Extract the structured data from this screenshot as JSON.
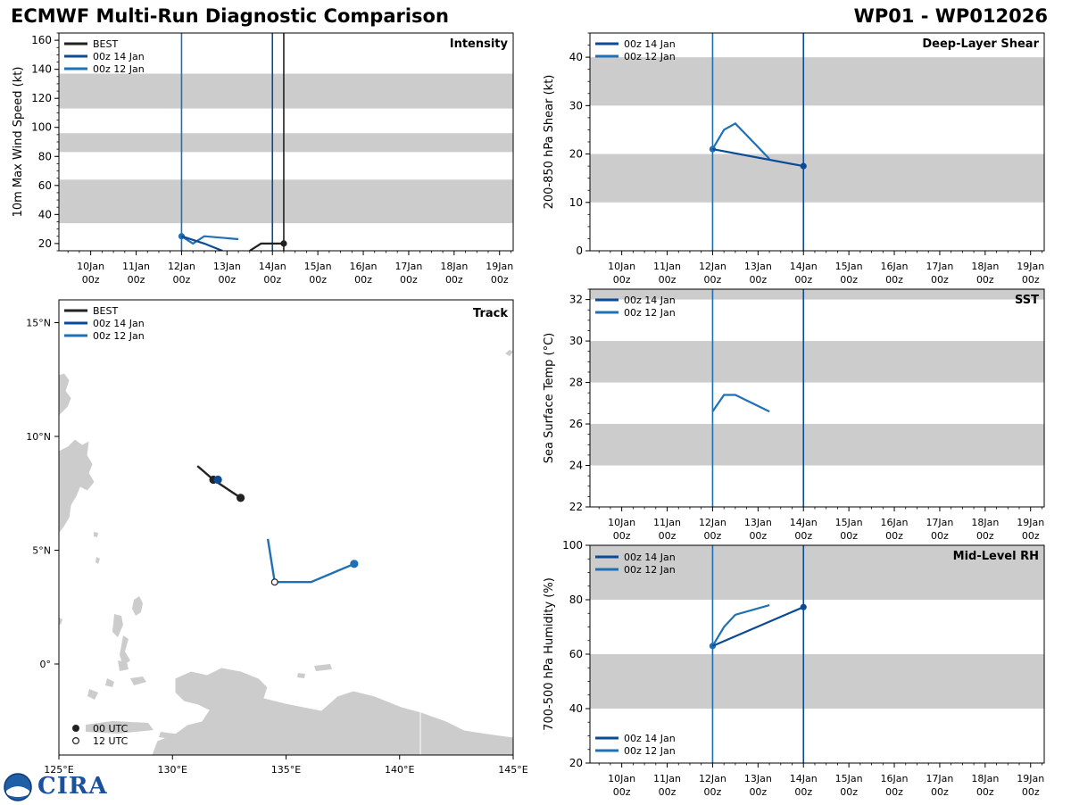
{
  "header": {
    "title": "ECMWF Multi-Run Diagnostic Comparison",
    "storm_id": "WP01 - WP012026",
    "logo_text": "CIRA"
  },
  "colors": {
    "best": "#222222",
    "run_00z_14jan": "#0b4a94",
    "run_00z_12jan": "#1f70b4",
    "band": "#cccccc",
    "land": "#cccccc"
  },
  "time_axis": {
    "tick_labels": [
      "10Jan",
      "11Jan",
      "12Jan",
      "13Jan",
      "14Jan",
      "15Jan",
      "16Jan",
      "17Jan",
      "18Jan",
      "19Jan"
    ],
    "tick_sub": "00z"
  },
  "chart_data": [
    {
      "id": "intensity",
      "type": "line",
      "title": "Intensity",
      "ylabel": "10m Max Wind Speed (kt)",
      "xlabel": "",
      "x_units": "days since 10 Jan 00z",
      "xlim": [
        -0.7,
        9.3
      ],
      "ylim": [
        15,
        165
      ],
      "yticks": [
        20,
        40,
        60,
        80,
        100,
        120,
        140,
        160
      ],
      "bands": [
        [
          34,
          64
        ],
        [
          83,
          96
        ],
        [
          113,
          137
        ]
      ],
      "legend": [
        "BEST",
        "00z 14 Jan",
        "00z 12 Jan"
      ],
      "vlines": [
        {
          "x": 2.0,
          "series": "run_00z_12jan"
        },
        {
          "x": 4.0,
          "series": "run_00z_14jan"
        },
        {
          "x": 4.25,
          "series": "best"
        }
      ],
      "series": [
        {
          "name": "BEST",
          "key": "best",
          "x": [
            3.5,
            3.75,
            4.0,
            4.25
          ],
          "y": [
            15,
            20,
            20,
            20
          ],
          "marker_x": 4.25,
          "marker_y": 20
        },
        {
          "name": "00z 12 Jan",
          "key": "run_00z_12jan",
          "x": [
            2.0,
            2.25,
            2.5,
            3.25
          ],
          "y": [
            25,
            20,
            25,
            23
          ],
          "marker_x": 2.0,
          "marker_y": 25
        },
        {
          "name": "00z 14 Jan",
          "key": "run_00z_14jan",
          "x": [
            2.0,
            2.5,
            2.9
          ],
          "y": [
            25,
            20,
            15
          ]
        }
      ]
    },
    {
      "id": "shear",
      "type": "line",
      "title": "Deep-Layer Shear",
      "ylabel": "200-850 hPa Shear (kt)",
      "xlabel": "",
      "xlim": [
        -0.7,
        9.3
      ],
      "ylim": [
        0,
        45
      ],
      "yticks": [
        0,
        10,
        20,
        30,
        40
      ],
      "bands": [
        [
          10,
          20
        ],
        [
          30,
          40
        ]
      ],
      "legend": [
        "00z 14 Jan",
        "00z 12 Jan"
      ],
      "vlines": [
        {
          "x": 2.0,
          "series": "run_00z_12jan"
        },
        {
          "x": 4.0,
          "series": "run_00z_14jan"
        }
      ],
      "series": [
        {
          "name": "00z 12 Jan",
          "key": "run_00z_12jan",
          "x": [
            2.0,
            2.25,
            2.5,
            3.25
          ],
          "y": [
            21,
            25,
            26.3,
            19
          ],
          "marker_x": 2.0,
          "marker_y": 21
        },
        {
          "name": "00z 14 Jan",
          "key": "run_00z_14jan",
          "x": [
            2.0,
            4.0
          ],
          "y": [
            21,
            17.5
          ],
          "marker_x": 4.0,
          "marker_y": 17.5
        }
      ]
    },
    {
      "id": "sst",
      "type": "line",
      "title": "SST",
      "ylabel": "Sea Surface Temp (°C)",
      "xlabel": "",
      "xlim": [
        -0.7,
        9.3
      ],
      "ylim": [
        22,
        32.5
      ],
      "yticks": [
        22,
        24,
        26,
        28,
        30,
        32
      ],
      "bands": [
        [
          24,
          26
        ],
        [
          28,
          30
        ],
        [
          32,
          34
        ]
      ],
      "legend": [
        "00z 14 Jan",
        "00z 12 Jan"
      ],
      "vlines": [
        {
          "x": 2.0,
          "series": "run_00z_12jan"
        },
        {
          "x": 4.0,
          "series": "run_00z_14jan"
        }
      ],
      "series": [
        {
          "name": "00z 12 Jan",
          "key": "run_00z_12jan",
          "x": [
            2.0,
            2.25,
            2.5,
            3.25
          ],
          "y": [
            26.6,
            27.4,
            27.4,
            26.6
          ]
        }
      ]
    },
    {
      "id": "rh",
      "type": "line",
      "title": "Mid-Level RH",
      "ylabel": "700-500 hPa Humidity (%)",
      "xlabel": "",
      "xlim": [
        -0.7,
        9.3
      ],
      "ylim": [
        20,
        100
      ],
      "yticks": [
        20,
        40,
        60,
        80,
        100
      ],
      "bands": [
        [
          40,
          60
        ],
        [
          80,
          100
        ]
      ],
      "legend": [
        "00z 14 Jan",
        "00z 12 Jan"
      ],
      "vlines": [
        {
          "x": 2.0,
          "series": "run_00z_12jan"
        },
        {
          "x": 4.0,
          "series": "run_00z_14jan"
        }
      ],
      "series": [
        {
          "name": "00z 12 Jan",
          "key": "run_00z_12jan",
          "x": [
            2.0,
            2.25,
            2.5,
            3.25
          ],
          "y": [
            63,
            70,
            74.5,
            78
          ],
          "marker_x": 2.0,
          "marker_y": 63
        },
        {
          "name": "00z 14 Jan",
          "key": "run_00z_14jan",
          "x": [
            2.0,
            4.0
          ],
          "y": [
            63,
            77.3
          ],
          "marker_x": 4.0,
          "marker_y": 77.3
        }
      ]
    },
    {
      "id": "track",
      "type": "scatter",
      "title": "Track",
      "xlabel": "",
      "ylabel": "",
      "xlim": [
        125,
        145
      ],
      "ylim": [
        -4,
        16
      ],
      "xticks": [
        125,
        130,
        135,
        140,
        145
      ],
      "xtick_labels": [
        "125°E",
        "130°E",
        "135°E",
        "140°E",
        "145°E"
      ],
      "yticks": [
        0,
        5,
        10,
        15
      ],
      "ytick_labels": [
        "0°",
        "5°N",
        "10°N",
        "15°N"
      ],
      "legend": [
        "BEST",
        "00z 14 Jan",
        "00z 12 Jan"
      ],
      "marker_legend": [
        "00 UTC",
        "12 UTC"
      ],
      "series": [
        {
          "name": "BEST",
          "key": "best",
          "lon": [
            131.1,
            131.8,
            133.0
          ],
          "lat": [
            8.7,
            8.1,
            7.3
          ],
          "markers": [
            {
              "lon": 131.8,
              "lat": 8.1,
              "filled": true
            },
            {
              "lon": 133.0,
              "lat": 7.3,
              "filled": true
            }
          ]
        },
        {
          "name": "00z 14 Jan",
          "key": "run_00z_14jan",
          "lon": [
            132.0
          ],
          "lat": [
            8.1
          ],
          "markers": [
            {
              "lon": 132.0,
              "lat": 8.1,
              "filled": true
            }
          ]
        },
        {
          "name": "00z 12 Jan",
          "key": "run_00z_12jan",
          "lon": [
            138.0,
            136.1,
            134.5,
            134.2
          ],
          "lat": [
            4.4,
            3.6,
            3.6,
            5.5
          ],
          "markers": [
            {
              "lon": 138.0,
              "lat": 4.4,
              "filled": true
            },
            {
              "lon": 134.5,
              "lat": 3.6,
              "filled": false
            }
          ]
        }
      ]
    }
  ]
}
